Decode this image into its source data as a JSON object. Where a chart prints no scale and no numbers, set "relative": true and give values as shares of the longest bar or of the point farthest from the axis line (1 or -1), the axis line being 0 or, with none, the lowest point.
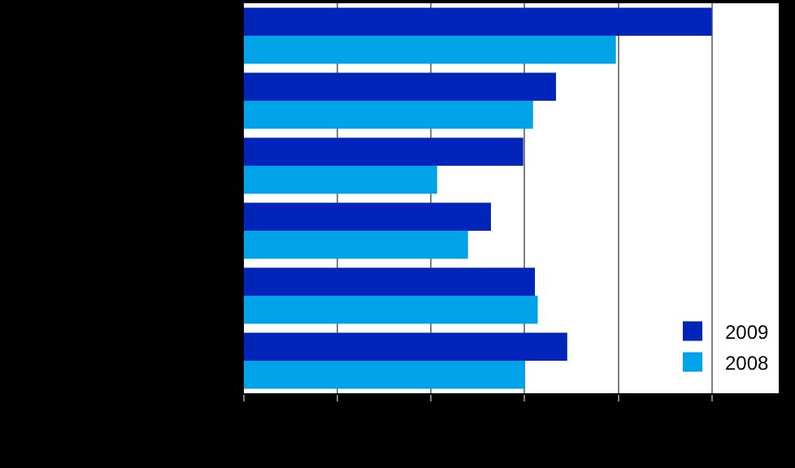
{
  "chart_data": {
    "type": "bar",
    "orientation": "horizontal",
    "relative": true,
    "categories": [
      null,
      null,
      null,
      null,
      null,
      null
    ],
    "series": [
      {
        "name": "2009",
        "color": "#0025b8",
        "values": [
          1,
          0.667,
          0.597,
          0.528,
          0.622,
          0.691
        ]
      },
      {
        "name": "2008",
        "color": "#00a2e8",
        "values": [
          0.795,
          0.618,
          0.413,
          0.479,
          0.628,
          0.601
        ]
      }
    ],
    "grid": "x",
    "legend": "bottom right"
  }
}
